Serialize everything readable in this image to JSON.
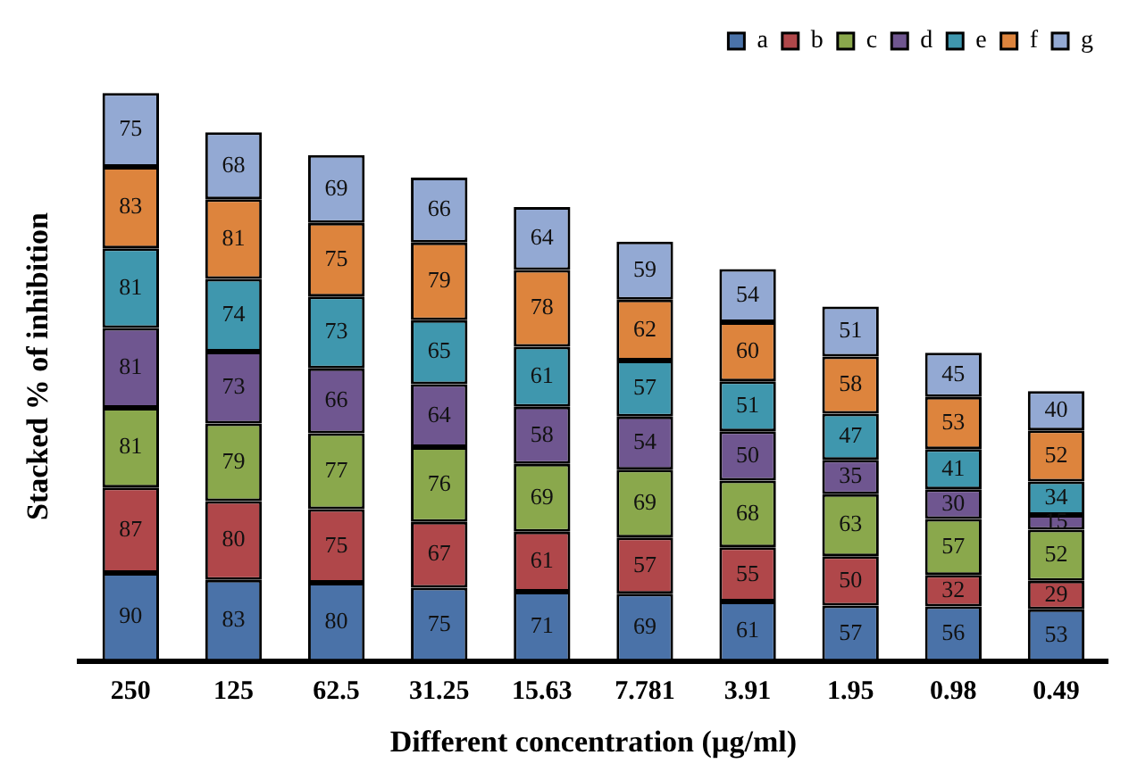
{
  "chart_data": {
    "type": "bar",
    "stacked": true,
    "xlabel": "Different concentration (µg/ml)",
    "ylabel": "Stacked % of inhibition",
    "legend": "top right",
    "data_labels": true,
    "categories": [
      "250",
      "125",
      "62.5",
      "31.25",
      "15.63",
      "7.781",
      "3.91",
      "1.95",
      "0.98",
      "0.49"
    ],
    "series": [
      {
        "name": "a",
        "color": "#4a72a8",
        "values": [
          90,
          83,
          80,
          75,
          71,
          69,
          61,
          57,
          56,
          53
        ]
      },
      {
        "name": "b",
        "color": "#b0474a",
        "values": [
          87,
          80,
          75,
          67,
          61,
          57,
          55,
          50,
          32,
          29
        ]
      },
      {
        "name": "c",
        "color": "#8aa84c",
        "values": [
          81,
          79,
          77,
          76,
          69,
          69,
          68,
          63,
          57,
          52
        ]
      },
      {
        "name": "d",
        "color": "#6f5690",
        "values": [
          81,
          73,
          66,
          64,
          58,
          54,
          50,
          35,
          30,
          15
        ]
      },
      {
        "name": "e",
        "color": "#3f97ae",
        "values": [
          81,
          74,
          73,
          65,
          61,
          57,
          51,
          47,
          41,
          34
        ]
      },
      {
        "name": "f",
        "color": "#dd843d",
        "values": [
          83,
          81,
          75,
          79,
          78,
          62,
          60,
          58,
          53,
          52
        ]
      },
      {
        "name": "g",
        "color": "#93a9d3",
        "values": [
          75,
          68,
          69,
          66,
          64,
          59,
          54,
          51,
          45,
          40
        ]
      }
    ]
  }
}
